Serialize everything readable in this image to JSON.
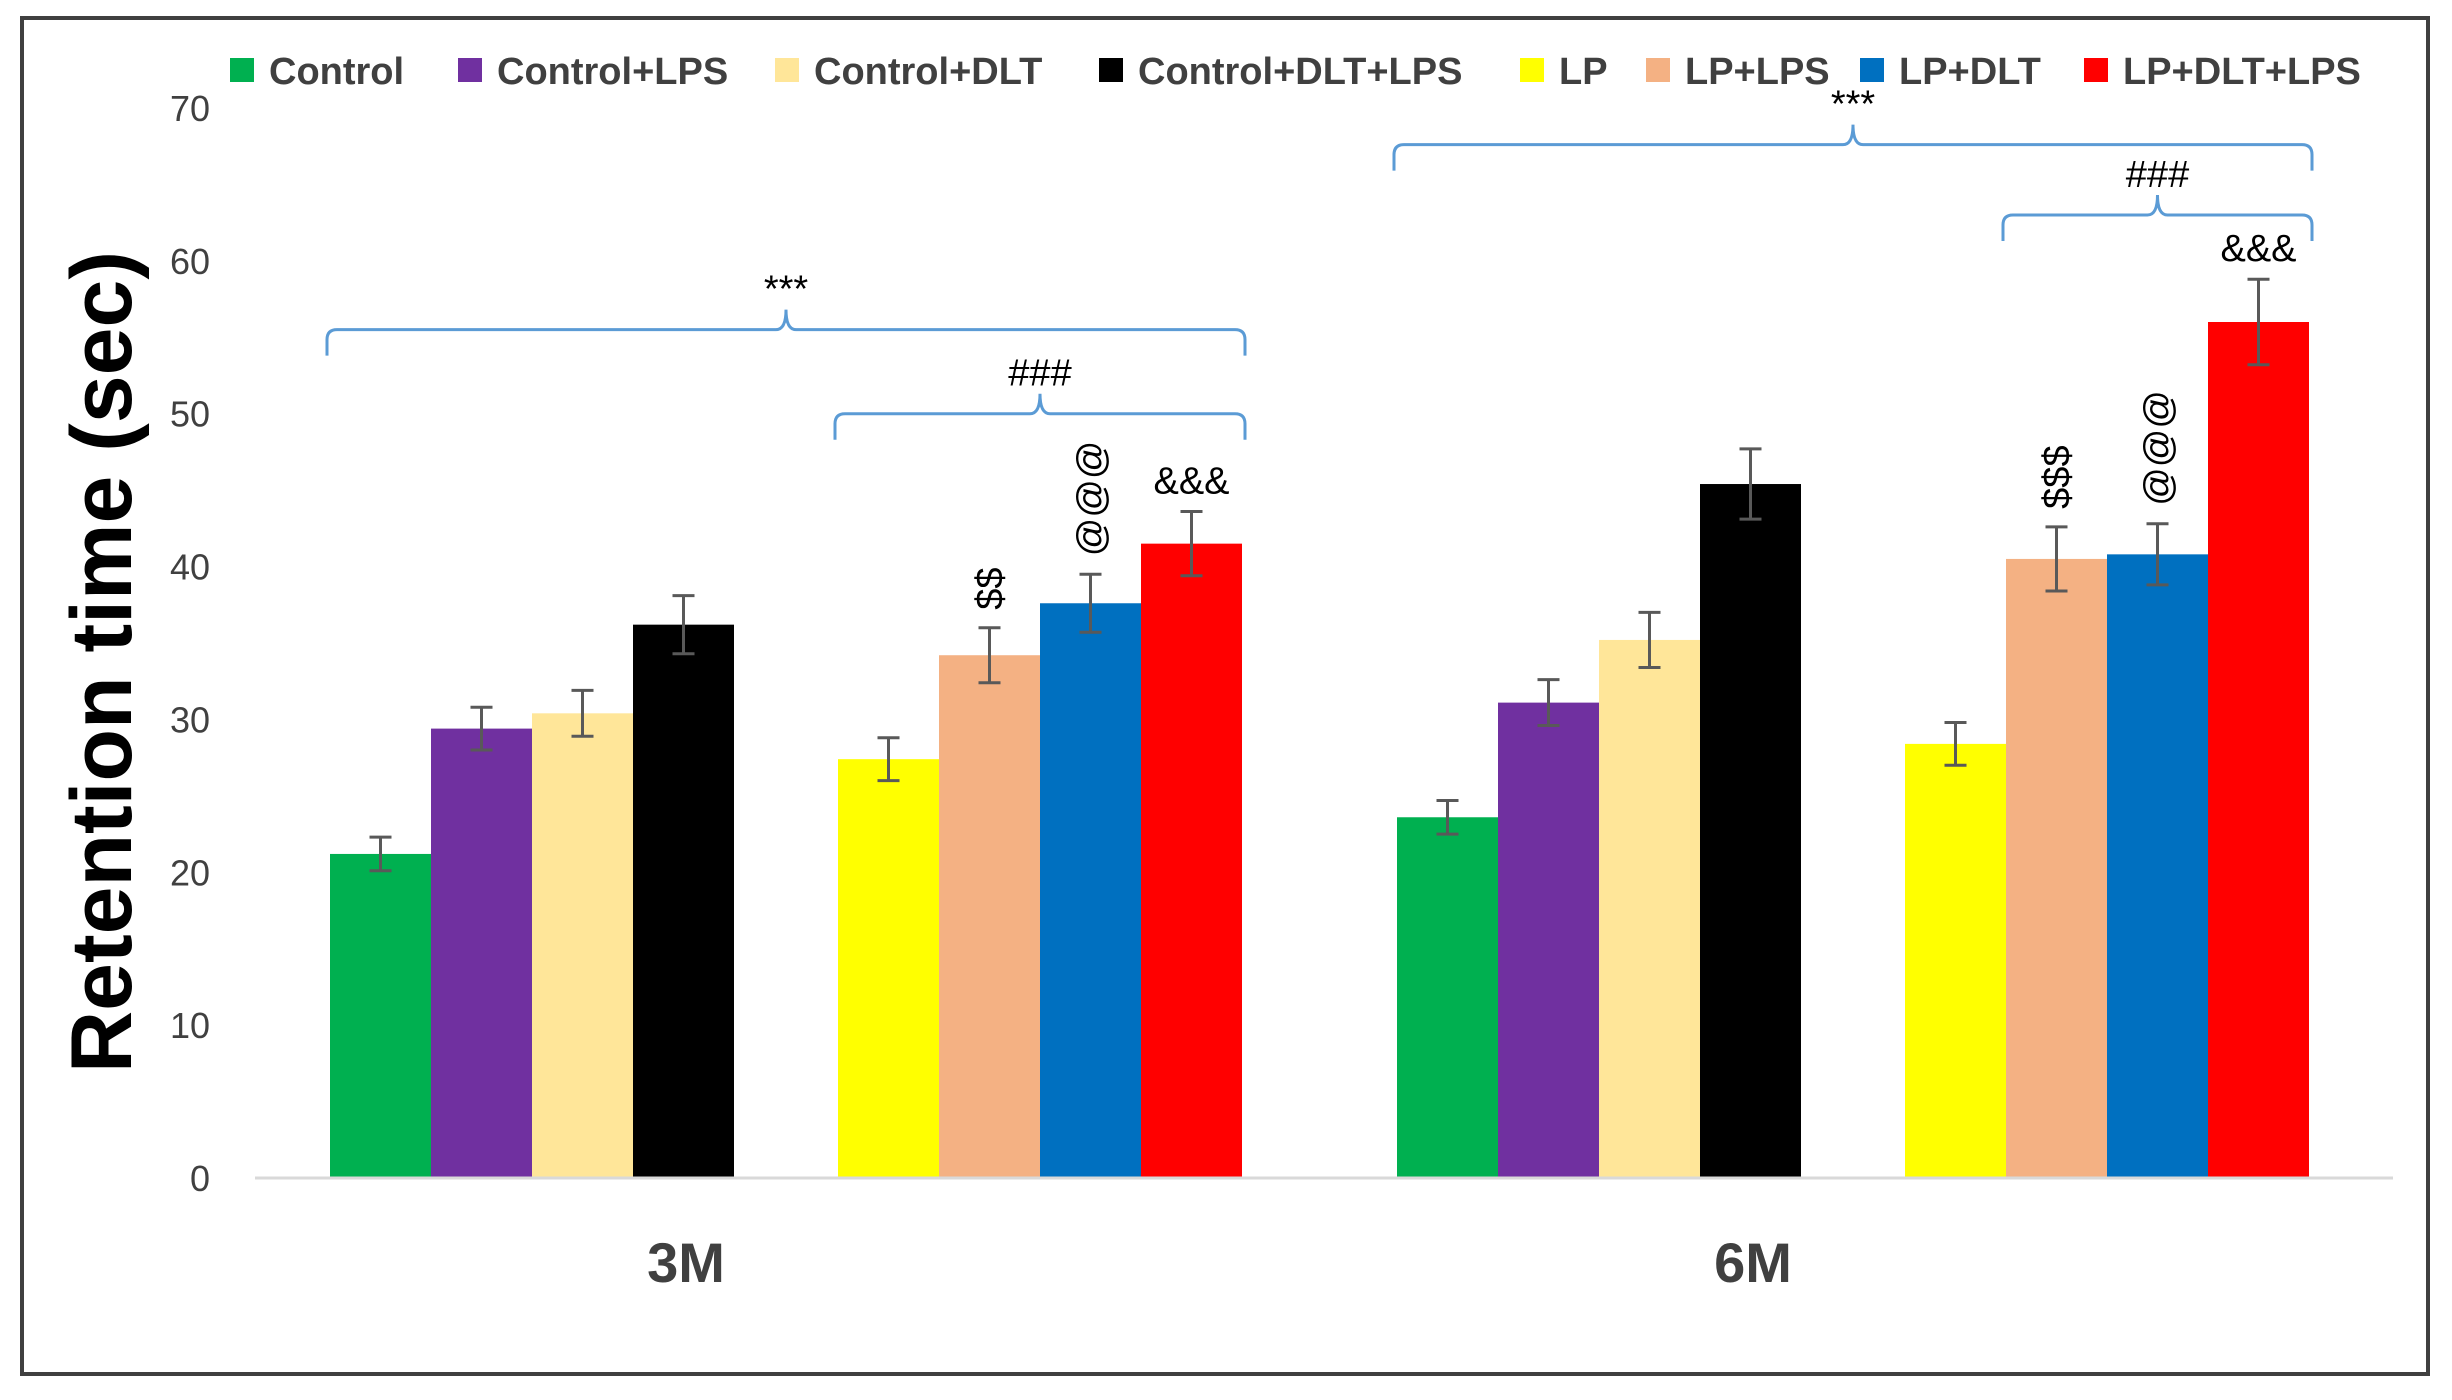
{
  "chart_data": {
    "type": "bar",
    "title": "",
    "xlabel": "",
    "ylabel": "Retention time (sec)",
    "ylim": [
      0,
      70
    ],
    "yticks": [
      "0",
      "10",
      "20",
      "30",
      "40",
      "50",
      "60",
      "70"
    ],
    "grid": false,
    "legend_position": "top",
    "categories": [
      "3M",
      "6M"
    ],
    "series": [
      {
        "name": "Control",
        "color": "#00B050",
        "values": [
          21.2,
          23.6
        ],
        "errors": [
          1.1,
          1.1
        ]
      },
      {
        "name": "Control+LPS",
        "color": "#7030A0",
        "values": [
          29.4,
          31.1
        ],
        "errors": [
          1.4,
          1.5
        ]
      },
      {
        "name": "Control+DLT",
        "color": "#FFE699",
        "values": [
          30.4,
          35.2
        ],
        "errors": [
          1.5,
          1.8
        ]
      },
      {
        "name": "Control+DLT+LPS",
        "color": "#000000",
        "values": [
          36.2,
          45.4
        ],
        "errors": [
          1.9,
          2.3
        ]
      },
      {
        "name": "LP",
        "color": "#FFFF00",
        "values": [
          27.4,
          28.4
        ],
        "errors": [
          1.4,
          1.4
        ]
      },
      {
        "name": "LP+LPS",
        "color": "#F4B183",
        "values": [
          34.2,
          40.5
        ],
        "errors": [
          1.8,
          2.1
        ]
      },
      {
        "name": "LP+DLT",
        "color": "#0070C0",
        "values": [
          37.6,
          40.8
        ],
        "errors": [
          1.9,
          2.0
        ]
      },
      {
        "name": "LP+DLT+LPS",
        "color": "#FF0000",
        "values": [
          41.5,
          56.0
        ],
        "errors": [
          2.1,
          2.8
        ]
      }
    ],
    "bar_annotations": [
      {
        "category": "3M",
        "series": "LP+LPS",
        "text": "$$"
      },
      {
        "category": "3M",
        "series": "LP+DLT",
        "text": "@@@"
      },
      {
        "category": "3M",
        "series": "LP+DLT+LPS",
        "text": "&&&"
      },
      {
        "category": "6M",
        "series": "LP+LPS",
        "text": "$$$"
      },
      {
        "category": "6M",
        "series": "LP+DLT",
        "text": "@@@"
      },
      {
        "category": "6M",
        "series": "LP+DLT+LPS",
        "text": "&&&"
      }
    ],
    "brackets": [
      {
        "category": "3M",
        "from_series": "Control",
        "to_series": "LP+DLT+LPS",
        "text": "***",
        "level_value": 55.5
      },
      {
        "category": "3M",
        "from_series": "LP",
        "to_series": "LP+DLT+LPS",
        "text": "###",
        "level_value": 50.0
      },
      {
        "category": "6M",
        "from_series": "Control",
        "to_series": "LP+DLT+LPS",
        "text": "***",
        "level_value": 67.6
      },
      {
        "category": "6M",
        "from_series": "LP+LPS",
        "to_series": "LP+DLT+LPS",
        "text": "###",
        "level_value": 63.0
      }
    ],
    "bracket_color": "#5B9BD5",
    "errorbar_color": "#595959",
    "axis_color": "#D9D9D9",
    "frame_color": "#404040"
  }
}
